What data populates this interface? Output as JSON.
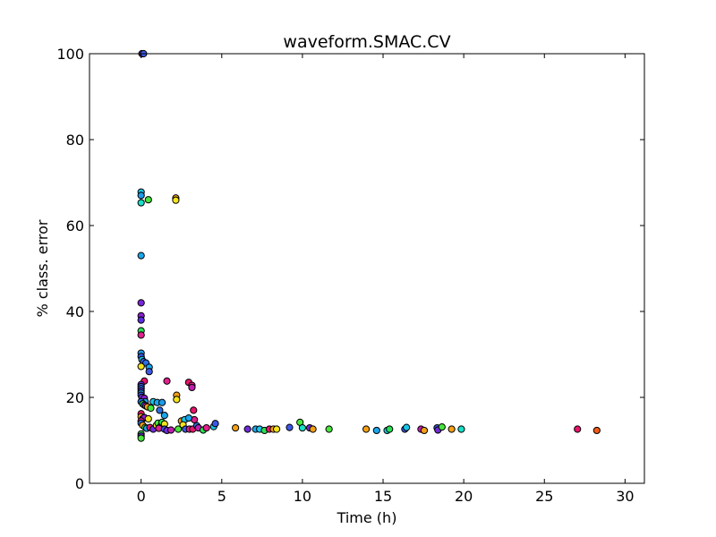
{
  "chart_data": {
    "type": "scatter",
    "title": "waveform.SMAC.CV",
    "xlabel": "Time (h)",
    "ylabel": "% class. error",
    "xlim": [
      -3.2,
      31.2
    ],
    "ylim": [
      0,
      100
    ],
    "xticks": [
      0,
      5,
      10,
      15,
      20,
      25,
      30
    ],
    "yticks": [
      0,
      20,
      40,
      60,
      80,
      100
    ],
    "grid": false,
    "legend": "none",
    "points": [
      {
        "x": 0.05,
        "y": 100,
        "color": "#6f2bd9"
      },
      {
        "x": 0.15,
        "y": 100,
        "color": "#3b57e6"
      },
      {
        "x": 0.0,
        "y": 67.8,
        "color": "#18c6ea"
      },
      {
        "x": 0.0,
        "y": 67.0,
        "color": "#1e9be8"
      },
      {
        "x": 0.0,
        "y": 65.3,
        "color": "#18e0c8"
      },
      {
        "x": 0.45,
        "y": 66.0,
        "color": "#46e63a"
      },
      {
        "x": 2.15,
        "y": 66.4,
        "color": "#f3a014"
      },
      {
        "x": 2.15,
        "y": 65.9,
        "color": "#f4e41c"
      },
      {
        "x": 0.0,
        "y": 53.0,
        "color": "#1aa6ec"
      },
      {
        "x": 0.0,
        "y": 42.0,
        "color": "#7a24d9"
      },
      {
        "x": 0.0,
        "y": 39.0,
        "color": "#8c1fd2"
      },
      {
        "x": 0.0,
        "y": 38.0,
        "color": "#5a2ee0"
      },
      {
        "x": 0.0,
        "y": 35.5,
        "color": "#28e052"
      },
      {
        "x": 0.0,
        "y": 34.5,
        "color": "#e0208c"
      },
      {
        "x": 0.0,
        "y": 30.3,
        "color": "#1e9be8"
      },
      {
        "x": 0.0,
        "y": 29.5,
        "color": "#3b57e6"
      },
      {
        "x": 0.05,
        "y": 28.8,
        "color": "#18c6ea"
      },
      {
        "x": 0.15,
        "y": 28.3,
        "color": "#3b57e6"
      },
      {
        "x": 0.3,
        "y": 28.0,
        "color": "#2c6fe4"
      },
      {
        "x": 0.0,
        "y": 27.2,
        "color": "#f4e41c"
      },
      {
        "x": 0.5,
        "y": 27.0,
        "color": "#1aa6ec"
      },
      {
        "x": 0.5,
        "y": 26.0,
        "color": "#3b57e6"
      },
      {
        "x": 0.2,
        "y": 23.8,
        "color": "#e8146a"
      },
      {
        "x": 0.0,
        "y": 23.0,
        "color": "#6f2bd9"
      },
      {
        "x": 0.0,
        "y": 22.5,
        "color": "#3b57e6"
      },
      {
        "x": 0.0,
        "y": 22.0,
        "color": "#2c6fe4"
      },
      {
        "x": 0.0,
        "y": 21.5,
        "color": "#5a2ee0"
      },
      {
        "x": 0.0,
        "y": 21.0,
        "color": "#1e9be8"
      },
      {
        "x": 0.0,
        "y": 20.5,
        "color": "#3b57e6"
      },
      {
        "x": 0.05,
        "y": 20.0,
        "color": "#6f2bd9"
      },
      {
        "x": 0.2,
        "y": 19.8,
        "color": "#8c1fd2"
      },
      {
        "x": 0.25,
        "y": 19.0,
        "color": "#1aa6ec"
      },
      {
        "x": 0.0,
        "y": 19.0,
        "color": "#2c6fe4"
      },
      {
        "x": 0.1,
        "y": 18.5,
        "color": "#28e052"
      },
      {
        "x": 0.2,
        "y": 18.2,
        "color": "#3b57e6"
      },
      {
        "x": 0.3,
        "y": 18.0,
        "color": "#e0208c"
      },
      {
        "x": 0.4,
        "y": 17.8,
        "color": "#f3a014"
      },
      {
        "x": 0.6,
        "y": 17.5,
        "color": "#46e63a"
      },
      {
        "x": 0.75,
        "y": 19.0,
        "color": "#18c6ea"
      },
      {
        "x": 1.0,
        "y": 18.8,
        "color": "#1aa6ec"
      },
      {
        "x": 1.3,
        "y": 18.8,
        "color": "#1e9be8"
      },
      {
        "x": 1.15,
        "y": 17.0,
        "color": "#2c6fe4"
      },
      {
        "x": 1.6,
        "y": 23.8,
        "color": "#e0208c"
      },
      {
        "x": 2.2,
        "y": 20.5,
        "color": "#f3a014"
      },
      {
        "x": 2.2,
        "y": 19.5,
        "color": "#f4e41c"
      },
      {
        "x": 1.45,
        "y": 15.8,
        "color": "#1aa6ec"
      },
      {
        "x": 2.95,
        "y": 23.5,
        "color": "#e8146a"
      },
      {
        "x": 3.15,
        "y": 22.8,
        "color": "#e0208c"
      },
      {
        "x": 3.15,
        "y": 22.3,
        "color": "#c01eb0"
      },
      {
        "x": 3.25,
        "y": 17.0,
        "color": "#e8146a"
      },
      {
        "x": 3.3,
        "y": 14.8,
        "color": "#e0208c"
      },
      {
        "x": 0.0,
        "y": 16.2,
        "color": "#e8146a"
      },
      {
        "x": 0.0,
        "y": 15.5,
        "color": "#f3a014"
      },
      {
        "x": 0.1,
        "y": 15.0,
        "color": "#3b57e6"
      },
      {
        "x": 0.2,
        "y": 15.3,
        "color": "#8c1fd2"
      },
      {
        "x": 0.45,
        "y": 15.0,
        "color": "#f4e41c"
      },
      {
        "x": 0.0,
        "y": 14.5,
        "color": "#e0208c"
      },
      {
        "x": 0.0,
        "y": 14.0,
        "color": "#2c6fe4"
      },
      {
        "x": 0.1,
        "y": 13.5,
        "color": "#f3a014"
      },
      {
        "x": 0.25,
        "y": 13.0,
        "color": "#46e63a"
      },
      {
        "x": 0.35,
        "y": 12.8,
        "color": "#1aa6ec"
      },
      {
        "x": 0.55,
        "y": 13.0,
        "color": "#e8146a"
      },
      {
        "x": 0.75,
        "y": 12.6,
        "color": "#6f2bd9"
      },
      {
        "x": 0.95,
        "y": 13.5,
        "color": "#f4e41c"
      },
      {
        "x": 1.05,
        "y": 14.0,
        "color": "#46e63a"
      },
      {
        "x": 1.2,
        "y": 13.2,
        "color": "#f3a014"
      },
      {
        "x": 1.3,
        "y": 14.2,
        "color": "#28e052"
      },
      {
        "x": 1.45,
        "y": 13.8,
        "color": "#f4e41c"
      },
      {
        "x": 1.1,
        "y": 12.8,
        "color": "#e0208c"
      },
      {
        "x": 1.45,
        "y": 12.6,
        "color": "#3b57e6"
      },
      {
        "x": 1.6,
        "y": 12.3,
        "color": "#6f2bd9"
      },
      {
        "x": 1.85,
        "y": 12.4,
        "color": "#c01eb0"
      },
      {
        "x": 2.3,
        "y": 12.6,
        "color": "#46e63a"
      },
      {
        "x": 2.5,
        "y": 14.5,
        "color": "#f3a014"
      },
      {
        "x": 2.7,
        "y": 14.8,
        "color": "#18c6ea"
      },
      {
        "x": 2.6,
        "y": 13.6,
        "color": "#f4e41c"
      },
      {
        "x": 2.75,
        "y": 12.6,
        "color": "#3b57e6"
      },
      {
        "x": 2.95,
        "y": 15.2,
        "color": "#1aa6ec"
      },
      {
        "x": 3.0,
        "y": 12.6,
        "color": "#e0208c"
      },
      {
        "x": 3.2,
        "y": 12.6,
        "color": "#e8146a"
      },
      {
        "x": 3.45,
        "y": 13.4,
        "color": "#2c6fe4"
      },
      {
        "x": 3.55,
        "y": 12.9,
        "color": "#c01eb0"
      },
      {
        "x": 3.85,
        "y": 12.4,
        "color": "#28e052"
      },
      {
        "x": 4.05,
        "y": 12.9,
        "color": "#e0208c"
      },
      {
        "x": 4.5,
        "y": 13.2,
        "color": "#18c6ea"
      },
      {
        "x": 4.6,
        "y": 13.9,
        "color": "#3b57e6"
      },
      {
        "x": 0.0,
        "y": 11.5,
        "color": "#28e052"
      },
      {
        "x": 0.0,
        "y": 11.0,
        "color": "#6f2bd9"
      },
      {
        "x": 0.0,
        "y": 10.5,
        "color": "#46e63a"
      },
      {
        "x": 5.85,
        "y": 12.9,
        "color": "#f3a014"
      },
      {
        "x": 6.6,
        "y": 12.6,
        "color": "#6f2bd9"
      },
      {
        "x": 7.1,
        "y": 12.6,
        "color": "#1aa6ec"
      },
      {
        "x": 7.35,
        "y": 12.6,
        "color": "#18c6ea"
      },
      {
        "x": 7.65,
        "y": 12.3,
        "color": "#28e052"
      },
      {
        "x": 7.95,
        "y": 12.6,
        "color": "#e8146a"
      },
      {
        "x": 8.2,
        "y": 12.6,
        "color": "#f3a014"
      },
      {
        "x": 8.4,
        "y": 12.6,
        "color": "#f4e41c"
      },
      {
        "x": 9.2,
        "y": 13.0,
        "color": "#3b57e6"
      },
      {
        "x": 9.85,
        "y": 14.2,
        "color": "#46e63a"
      },
      {
        "x": 10.0,
        "y": 12.9,
        "color": "#18e0c8"
      },
      {
        "x": 10.45,
        "y": 12.9,
        "color": "#6f2bd9"
      },
      {
        "x": 10.65,
        "y": 12.6,
        "color": "#f3a014"
      },
      {
        "x": 11.65,
        "y": 12.6,
        "color": "#46e63a"
      },
      {
        "x": 13.95,
        "y": 12.6,
        "color": "#f3a014"
      },
      {
        "x": 14.6,
        "y": 12.3,
        "color": "#1aa6ec"
      },
      {
        "x": 15.25,
        "y": 12.3,
        "color": "#18c6ea"
      },
      {
        "x": 15.4,
        "y": 12.6,
        "color": "#28e052"
      },
      {
        "x": 16.35,
        "y": 12.6,
        "color": "#3b57e6"
      },
      {
        "x": 16.45,
        "y": 13.0,
        "color": "#18c6ea"
      },
      {
        "x": 17.35,
        "y": 12.6,
        "color": "#c01eb0"
      },
      {
        "x": 17.55,
        "y": 12.3,
        "color": "#f3a014"
      },
      {
        "x": 18.35,
        "y": 12.9,
        "color": "#3b57e6"
      },
      {
        "x": 18.4,
        "y": 12.4,
        "color": "#6f2bd9"
      },
      {
        "x": 18.65,
        "y": 13.1,
        "color": "#46e63a"
      },
      {
        "x": 19.25,
        "y": 12.6,
        "color": "#f3a014"
      },
      {
        "x": 19.85,
        "y": 12.6,
        "color": "#18e0c8"
      },
      {
        "x": 27.05,
        "y": 12.6,
        "color": "#e8146a"
      },
      {
        "x": 28.25,
        "y": 12.3,
        "color": "#f05a14"
      }
    ]
  }
}
